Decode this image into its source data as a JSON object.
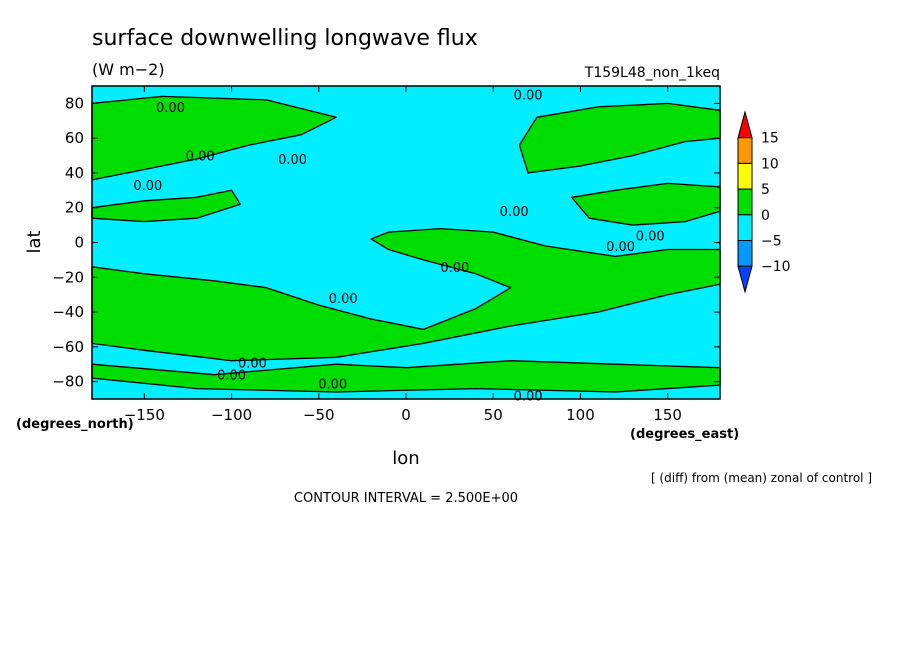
{
  "chart_data": {
    "type": "heatmap",
    "title": "surface downwelling longwave flux",
    "units": "(W m−2)",
    "run_label": "T159L48_non_1keq",
    "xlabel": "lon",
    "ylabel": "lat",
    "x_units": "(degrees_east)",
    "y_units": "(degrees_north)",
    "xlim": [
      -180,
      180
    ],
    "ylim": [
      -90,
      90
    ],
    "x_ticks": [
      -150,
      -100,
      -50,
      0,
      50,
      100,
      150
    ],
    "y_ticks": [
      80,
      60,
      40,
      20,
      0,
      -20,
      -40,
      -60,
      -80
    ],
    "contour_label": "0.00",
    "contour_interval_text": "CONTOUR INTERVAL = 2.500E+00",
    "note": "[ (diff) from (mean) zonal of control ]",
    "colorbar": {
      "levels": [
        15,
        10,
        5,
        0,
        -5,
        -10
      ],
      "colors": [
        "#ff0000",
        "#ff9900",
        "#ffff00",
        "#00dd00",
        "#00eeff",
        "#0099ff",
        "#0044ff"
      ]
    },
    "fill_regions": [
      {
        "level": "0 to 5",
        "color": "#00dd00",
        "polygon": [
          [
            -180,
            -14
          ],
          [
            -150,
            -18
          ],
          [
            -110,
            -22
          ],
          [
            -80,
            -26
          ],
          [
            -50,
            -36
          ],
          [
            -20,
            -44
          ],
          [
            10,
            -50
          ],
          [
            40,
            -38
          ],
          [
            60,
            -26
          ],
          [
            40,
            -18
          ],
          [
            10,
            -10
          ],
          [
            -10,
            -4
          ],
          [
            -20,
            2
          ],
          [
            -10,
            6
          ],
          [
            20,
            8
          ],
          [
            50,
            6
          ],
          [
            80,
            -2
          ],
          [
            120,
            -8
          ],
          [
            150,
            -4
          ],
          [
            180,
            -4
          ],
          [
            180,
            -24
          ],
          [
            150,
            -30
          ],
          [
            110,
            -40
          ],
          [
            60,
            -48
          ],
          [
            10,
            -58
          ],
          [
            -40,
            -66
          ],
          [
            -100,
            -68
          ],
          [
            -150,
            -62
          ],
          [
            -180,
            -58
          ]
        ]
      },
      {
        "level": "0 to 5",
        "color": "#00dd00",
        "polygon": [
          [
            -180,
            36
          ],
          [
            -150,
            42
          ],
          [
            -120,
            48
          ],
          [
            -90,
            56
          ],
          [
            -60,
            62
          ],
          [
            -40,
            72
          ],
          [
            -80,
            82
          ],
          [
            -140,
            84
          ],
          [
            -180,
            80
          ]
        ]
      },
      {
        "level": "0 to 5",
        "color": "#00dd00",
        "polygon": [
          [
            -180,
            20
          ],
          [
            -150,
            24
          ],
          [
            -120,
            26
          ],
          [
            -100,
            30
          ],
          [
            -95,
            22
          ],
          [
            -120,
            14
          ],
          [
            -150,
            12
          ],
          [
            -180,
            14
          ]
        ]
      },
      {
        "level": "0 to 5",
        "color": "#00dd00",
        "polygon": [
          [
            70,
            40
          ],
          [
            100,
            44
          ],
          [
            130,
            50
          ],
          [
            160,
            58
          ],
          [
            180,
            60
          ],
          [
            180,
            76
          ],
          [
            150,
            80
          ],
          [
            110,
            78
          ],
          [
            75,
            72
          ],
          [
            65,
            56
          ]
        ]
      },
      {
        "level": "0 to 5",
        "color": "#00dd00",
        "polygon": [
          [
            95,
            26
          ],
          [
            120,
            30
          ],
          [
            150,
            34
          ],
          [
            180,
            32
          ],
          [
            180,
            18
          ],
          [
            160,
            12
          ],
          [
            130,
            10
          ],
          [
            105,
            14
          ]
        ]
      },
      {
        "level": "0 to 5",
        "color": "#00dd00",
        "polygon": [
          [
            -40,
            -70
          ],
          [
            0,
            -72
          ],
          [
            60,
            -68
          ],
          [
            120,
            -70
          ],
          [
            180,
            -72
          ],
          [
            180,
            -82
          ],
          [
            120,
            -86
          ],
          [
            40,
            -84
          ],
          [
            -40,
            -86
          ],
          [
            -120,
            -84
          ],
          [
            -180,
            -78
          ],
          [
            -180,
            -70
          ],
          [
            -110,
            -76
          ]
        ]
      }
    ]
  }
}
